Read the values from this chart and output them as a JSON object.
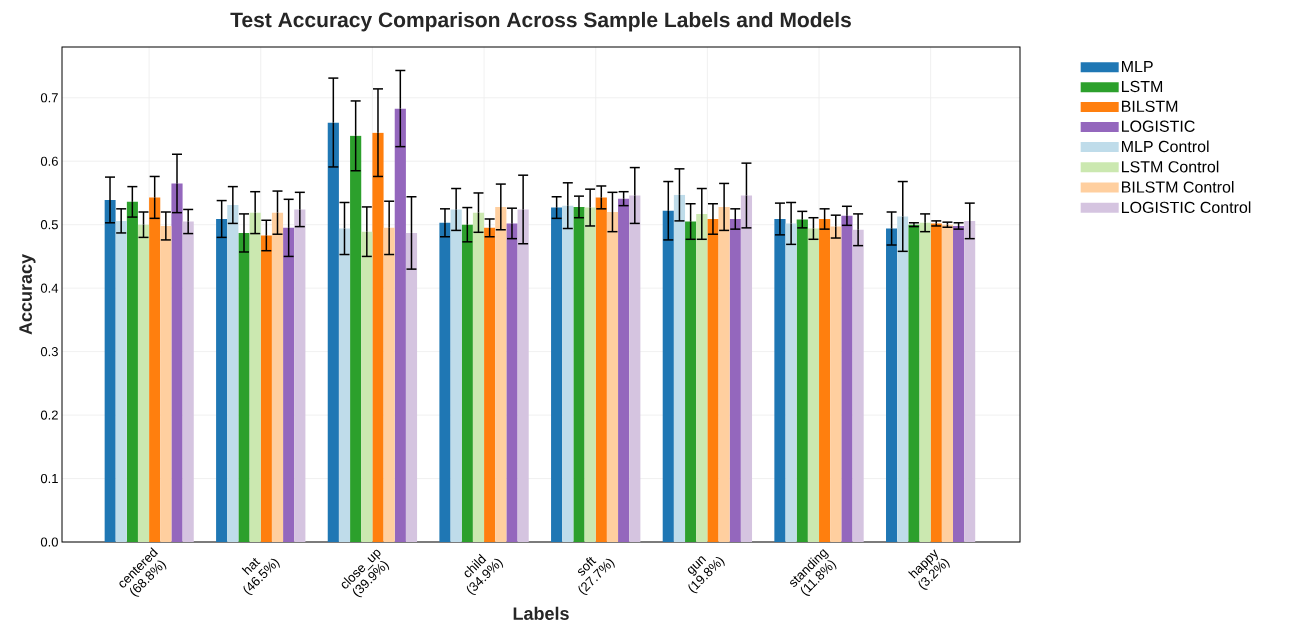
{
  "chart_data": {
    "type": "bar",
    "title": "Test Accuracy Comparison Across Sample Labels and Models",
    "xlabel": "Labels",
    "ylabel": "Accuracy",
    "categories": [
      "centered (68.8%)",
      "hat (46.5%)",
      "close_up (39.9%)",
      "child (34.9%)",
      "soft (27.7%)",
      "gun (19.8%)",
      "standing (11.8%)",
      "happy (3.2%)"
    ],
    "series": [
      {
        "name": "MLP",
        "color": "#1f77b4",
        "values": [
          0.539,
          0.509,
          0.661,
          0.503,
          0.527,
          0.522,
          0.509,
          0.494
        ],
        "errors": [
          0.036,
          0.029,
          0.07,
          0.022,
          0.017,
          0.046,
          0.025,
          0.026
        ]
      },
      {
        "name": "LSTM",
        "color": "#2ca02c",
        "values": [
          0.536,
          0.487,
          0.64,
          0.5,
          0.528,
          0.505,
          0.508,
          0.5
        ],
        "errors": [
          0.024,
          0.03,
          0.055,
          0.027,
          0.017,
          0.028,
          0.013,
          0.003
        ]
      },
      {
        "name": "BILSTM",
        "color": "#ff7f0e",
        "values": [
          0.543,
          0.483,
          0.645,
          0.495,
          0.543,
          0.509,
          0.509,
          0.502
        ],
        "errors": [
          0.033,
          0.024,
          0.069,
          0.014,
          0.018,
          0.024,
          0.016,
          0.004
        ]
      },
      {
        "name": "LOGISTIC",
        "color": "#9467bd",
        "values": [
          0.565,
          0.495,
          0.683,
          0.502,
          0.541,
          0.509,
          0.514,
          0.498
        ],
        "errors": [
          0.046,
          0.045,
          0.06,
          0.024,
          0.011,
          0.016,
          0.015,
          0.005
        ]
      },
      {
        "name": "MLP Control",
        "color": "#bfdcea",
        "values": [
          0.506,
          0.531,
          0.494,
          0.524,
          0.53,
          0.547,
          0.502,
          0.513
        ],
        "errors": [
          0.019,
          0.029,
          0.041,
          0.033,
          0.036,
          0.041,
          0.033,
          0.055
        ]
      },
      {
        "name": "LSTM Control",
        "color": "#cbe8b0",
        "values": [
          0.5,
          0.519,
          0.489,
          0.519,
          0.527,
          0.517,
          0.494,
          0.503
        ],
        "errors": [
          0.02,
          0.033,
          0.039,
          0.031,
          0.029,
          0.04,
          0.017,
          0.014
        ]
      },
      {
        "name": "BILSTM Control",
        "color": "#ffcf9f",
        "values": [
          0.498,
          0.519,
          0.495,
          0.528,
          0.52,
          0.528,
          0.497,
          0.5
        ],
        "errors": [
          0.022,
          0.034,
          0.042,
          0.036,
          0.031,
          0.037,
          0.018,
          0.004
        ]
      },
      {
        "name": "LOGISTIC Control",
        "color": "#d5c4e0",
        "values": [
          0.505,
          0.524,
          0.487,
          0.524,
          0.546,
          0.546,
          0.492,
          0.506
        ],
        "errors": [
          0.019,
          0.027,
          0.057,
          0.054,
          0.044,
          0.051,
          0.025,
          0.028
        ]
      }
    ],
    "ylim": [
      0,
      0.78
    ],
    "yticks": [
      {
        "value": 0,
        "label": "0.0"
      },
      {
        "value": 0.1,
        "label": "0.1"
      },
      {
        "value": 0.2,
        "label": "0.2"
      },
      {
        "value": 0.3,
        "label": "0.3"
      },
      {
        "value": 0.4,
        "label": "0.4"
      },
      {
        "value": 0.5,
        "label": "0.5"
      },
      {
        "value": 0.6,
        "label": "0.6"
      },
      {
        "value": 0.7,
        "label": "0.7"
      }
    ],
    "grid": true,
    "legend": "top right"
  }
}
